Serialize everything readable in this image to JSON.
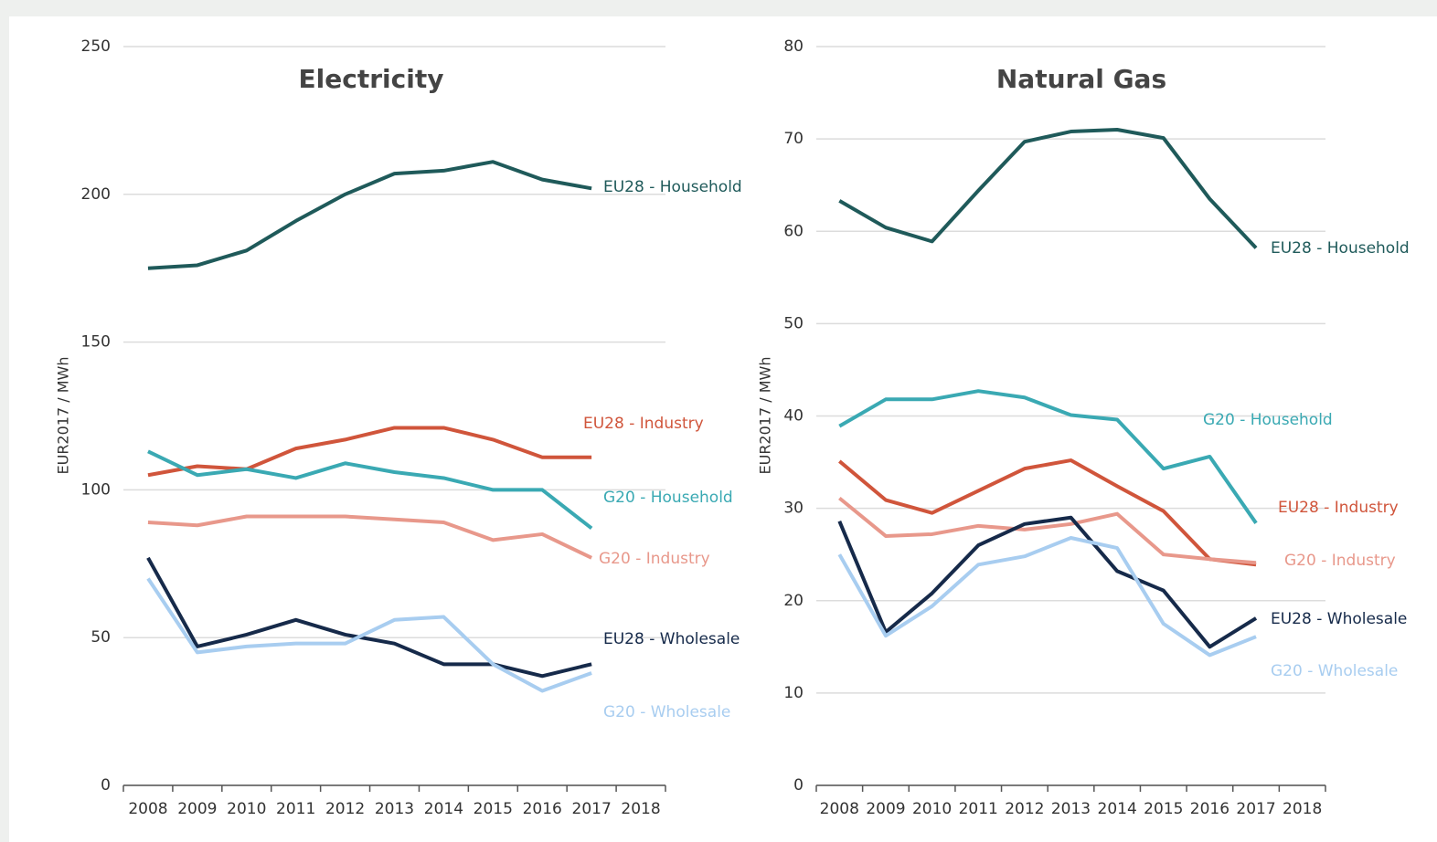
{
  "chart_data": [
    {
      "type": "line",
      "title": "Electricity",
      "y_label": "EUR2017 / MWh",
      "categories": [
        "2008",
        "2009",
        "2010",
        "2011",
        "2012",
        "2013",
        "2014",
        "2015",
        "2016",
        "2017",
        "2018"
      ],
      "ylim": [
        0,
        250
      ],
      "yticks": [
        0,
        50,
        100,
        150,
        200,
        250
      ],
      "grid": true,
      "series": [
        {
          "name": "EU28 - Household",
          "color": "#1f5a5a",
          "values": [
            175,
            176,
            181,
            191,
            200,
            207,
            208,
            211,
            205,
            202,
            null
          ]
        },
        {
          "name": "EU28 - Industry",
          "color": "#d0553b",
          "values": [
            105,
            108,
            107,
            114,
            117,
            121,
            121,
            117,
            111,
            111,
            null
          ]
        },
        {
          "name": "G20 - Household",
          "color": "#3aa9b3",
          "values": [
            113,
            105,
            107,
            104,
            109,
            106,
            104,
            100,
            100,
            87,
            null
          ]
        },
        {
          "name": "G20 - Industry",
          "color": "#e8988b",
          "values": [
            89,
            88,
            91,
            91,
            91,
            90,
            89,
            83,
            85,
            77,
            null
          ]
        },
        {
          "name": "EU28 - Wholesale",
          "color": "#162a4a",
          "values": [
            77,
            47,
            51,
            56,
            51,
            48,
            41,
            41,
            37,
            41,
            null
          ]
        },
        {
          "name": "G20 - Wholesale",
          "color": "#a8cdf0",
          "values": [
            70,
            45,
            47,
            48,
            48,
            56,
            57,
            41,
            32,
            38,
            null
          ]
        }
      ]
    },
    {
      "type": "line",
      "title": "Natural Gas",
      "y_label": "EUR2017 / MWh",
      "categories": [
        "2008",
        "2009",
        "2010",
        "2011",
        "2012",
        "2013",
        "2014",
        "2015",
        "2016",
        "2017",
        "2018"
      ],
      "ylim": [
        0,
        80
      ],
      "yticks": [
        0,
        10,
        20,
        30,
        40,
        50,
        60,
        70,
        80
      ],
      "grid": true,
      "series": [
        {
          "name": "EU28 - Household",
          "color": "#1f5a5a",
          "values": [
            63.3,
            60.4,
            58.9,
            64.4,
            69.7,
            70.8,
            71,
            70.1,
            63.5,
            58.2,
            null
          ]
        },
        {
          "name": "G20 - Household",
          "color": "#3aa9b3",
          "values": [
            38.9,
            41.8,
            41.8,
            42.7,
            42,
            40.1,
            39.6,
            34.3,
            35.6,
            28.4,
            null
          ]
        },
        {
          "name": "EU28 - Industry",
          "color": "#d0553b",
          "values": [
            35.1,
            30.9,
            29.5,
            31.9,
            34.3,
            35.2,
            32.4,
            29.7,
            24.5,
            23.9,
            null
          ]
        },
        {
          "name": "G20 - Industry",
          "color": "#e8988b",
          "values": [
            31.1,
            27,
            27.2,
            28.1,
            27.7,
            28.3,
            29.4,
            25,
            24.5,
            24.1,
            null
          ]
        },
        {
          "name": "EU28 - Wholesale",
          "color": "#162a4a",
          "values": [
            28.6,
            16.6,
            20.8,
            26,
            28.3,
            29,
            23.2,
            21.1,
            15,
            18.1,
            null
          ]
        },
        {
          "name": "G20 - Wholesale",
          "color": "#a8cdf0",
          "values": [
            25,
            16.2,
            19.4,
            23.9,
            24.8,
            26.8,
            25.7,
            17.5,
            14.1,
            16.1,
            null
          ]
        }
      ]
    }
  ]
}
